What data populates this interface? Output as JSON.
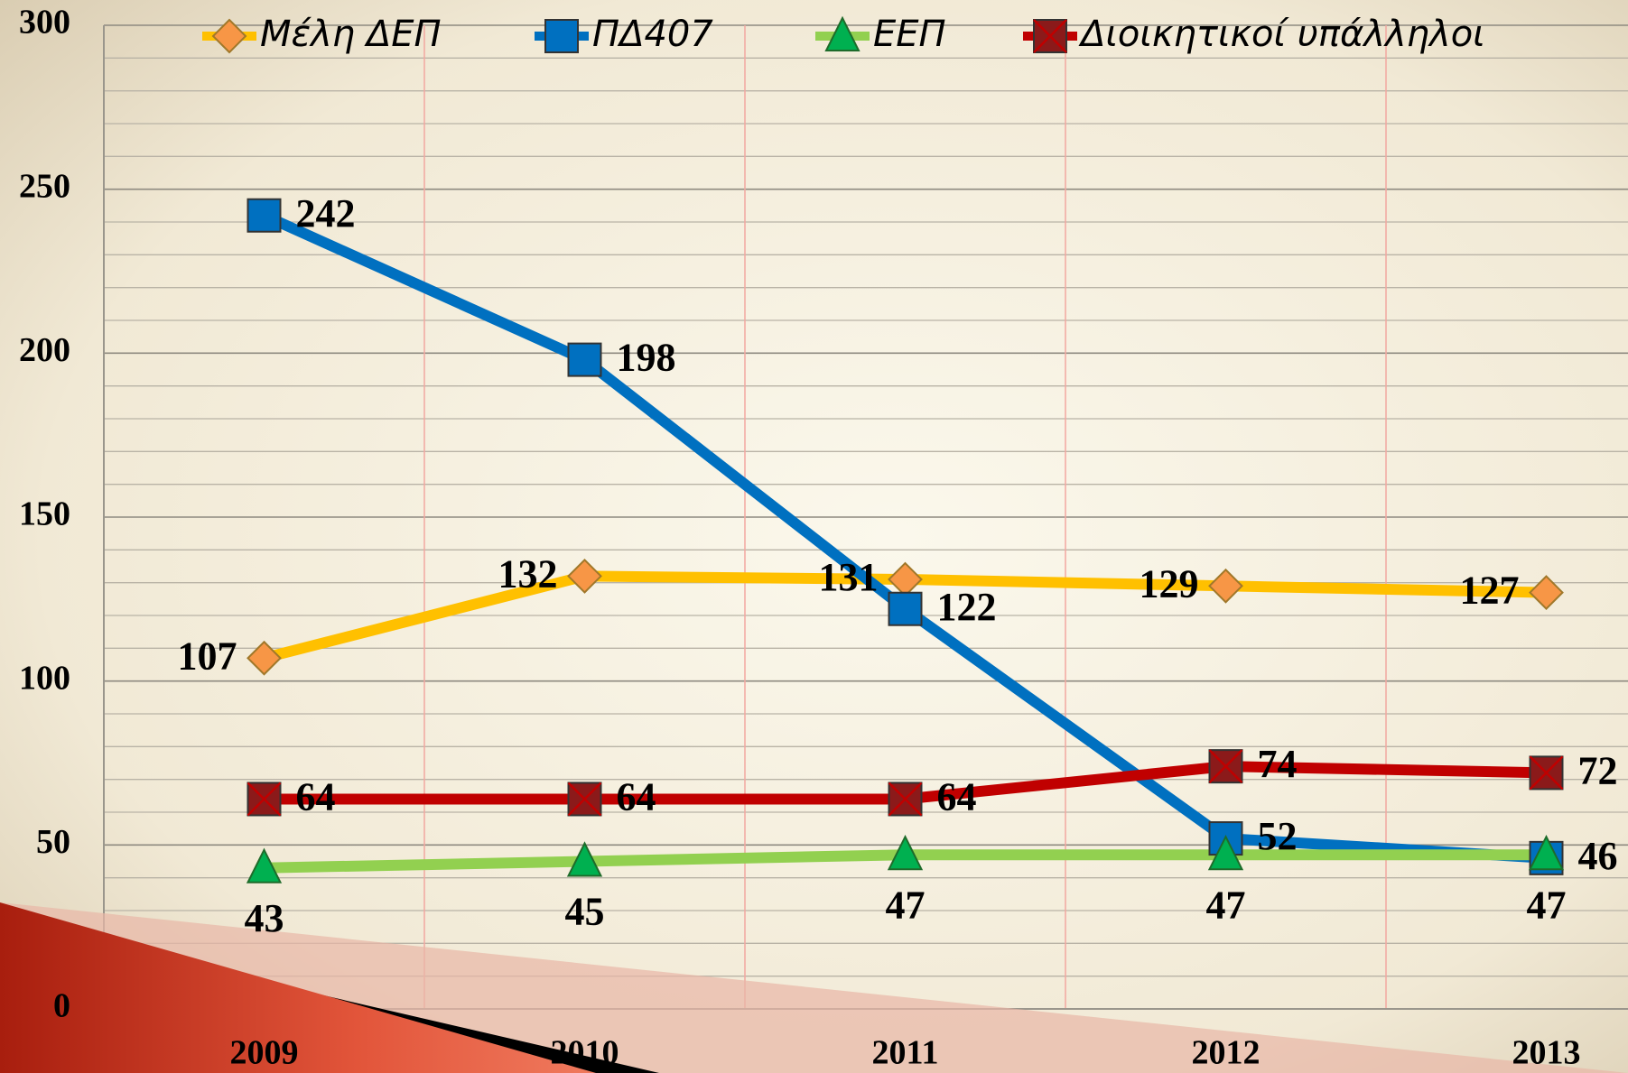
{
  "chart_data": {
    "type": "line",
    "categories": [
      "2009",
      "2010",
      "2011",
      "2012",
      "2013"
    ],
    "series": [
      {
        "name": "Μέλη ΔΕΠ",
        "color": "#FFC000",
        "marker_color": "#F79646",
        "marker": "diamond",
        "values": [
          107,
          132,
          131,
          129,
          127
        ]
      },
      {
        "name": "ΠΔ407",
        "color": "#0070C0",
        "marker_color": "#0070C0",
        "marker": "square",
        "values": [
          242,
          198,
          122,
          52,
          46
        ]
      },
      {
        "name": "ΕΕΠ",
        "color": "#92D050",
        "marker_color": "#00B050",
        "marker": "triangle",
        "values": [
          43,
          45,
          47,
          47,
          47
        ]
      },
      {
        "name": "Διοικητικοί υπάλληλοι",
        "color": "#C00000",
        "marker_color": "#8B1A1A",
        "marker": "xsquare",
        "values": [
          64,
          64,
          64,
          74,
          72
        ]
      }
    ],
    "ylim": [
      0,
      300
    ],
    "yticks": [
      0,
      50,
      100,
      150,
      200,
      250,
      300
    ],
    "grid": true,
    "legend": "top"
  }
}
